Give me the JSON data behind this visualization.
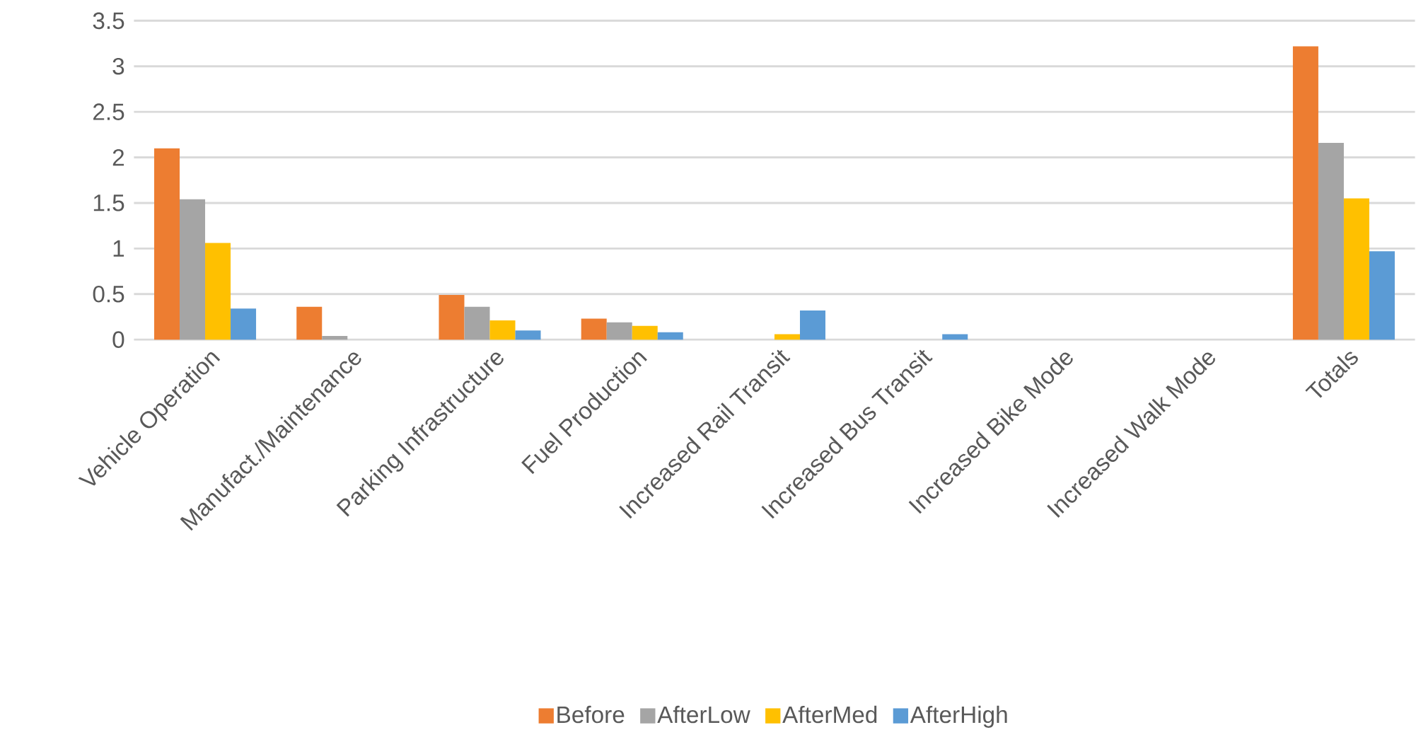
{
  "chart_data": {
    "type": "bar",
    "categories": [
      "Vehicle Operation",
      "Manufact./Maintenance",
      "Parking Infrastructure",
      "Fuel Production",
      "Increased Rail Transit",
      "Increased Bus Transit",
      "Increased Bike Mode",
      "Increased Walk Mode",
      "Totals"
    ],
    "series": [
      {
        "name": "Before",
        "color": "#ed7d31",
        "values": [
          2.1,
          0.36,
          0.49,
          0.23,
          0,
          0,
          0,
          0,
          3.22
        ]
      },
      {
        "name": "AfterLow",
        "color": "#a5a5a5",
        "values": [
          1.54,
          0.04,
          0.36,
          0.19,
          0,
          0,
          0,
          0,
          2.16
        ]
      },
      {
        "name": "AfterMed",
        "color": "#ffc000",
        "values": [
          1.06,
          0,
          0.21,
          0.15,
          0.06,
          0,
          0,
          0,
          1.55
        ]
      },
      {
        "name": "AfterHigh",
        "color": "#5b9bd5",
        "values": [
          0.34,
          0,
          0.1,
          0.08,
          0.32,
          0.06,
          0,
          0,
          0.97
        ]
      }
    ],
    "ylim": [
      0,
      3.5
    ],
    "yticks": [
      0,
      0.5,
      1,
      1.5,
      2,
      2.5,
      3,
      3.5
    ],
    "grid": "y",
    "legend": "bottom"
  }
}
